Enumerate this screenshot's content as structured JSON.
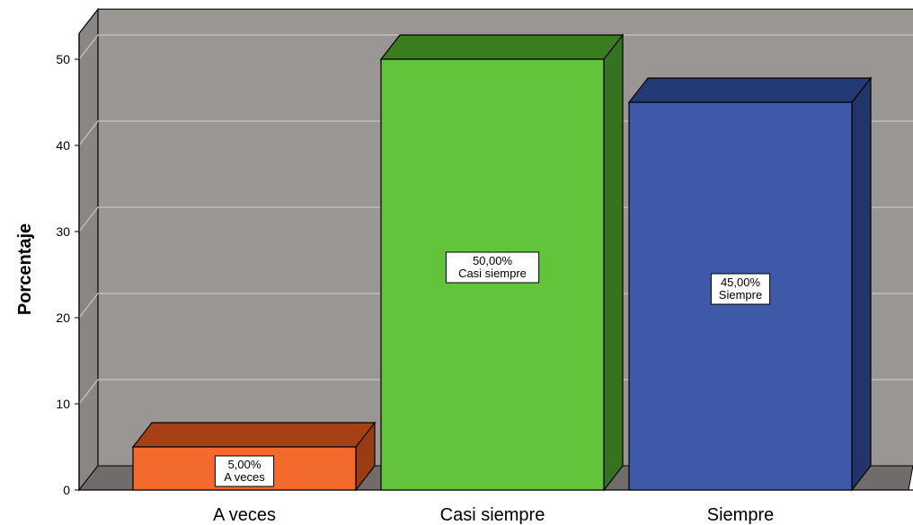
{
  "chart_data": {
    "type": "bar",
    "categories": [
      "A veces",
      "Casi siempre",
      "Siempre"
    ],
    "values": [
      5.0,
      50.0,
      45.0
    ],
    "data_labels": [
      {
        "value": "5,00%",
        "category": "A veces"
      },
      {
        "value": "50,00%",
        "category": "Casi siempre"
      },
      {
        "value": "45,00%",
        "category": "Siempre"
      }
    ],
    "title": "",
    "xlabel": "",
    "ylabel": "Porcentaje",
    "ylim": [
      0,
      53
    ],
    "yticks": [
      0,
      10,
      20,
      30,
      40,
      50
    ],
    "grid": true,
    "style": "3d",
    "colors": {
      "bars": [
        "#f26a2c",
        "#62c43a",
        "#3e59a8"
      ],
      "bar_tops": [
        "#a74115",
        "#3a7d1e",
        "#243a75"
      ],
      "bar_sides": [
        "#9a3c13",
        "#357320",
        "#22356b"
      ],
      "background": "#9a9693",
      "floor": "#6f6c6a",
      "wall_side": "#8a8684",
      "gridlines": "#c9c6c3"
    }
  }
}
